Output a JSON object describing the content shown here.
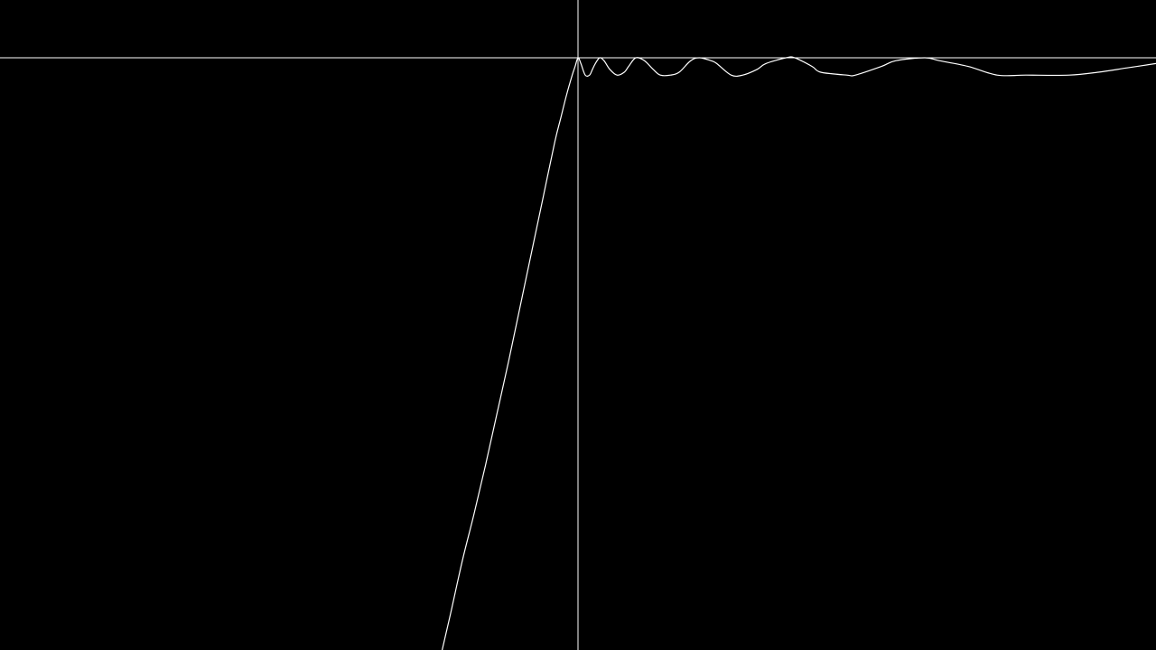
{
  "colors": {
    "background": "#000000",
    "axis": "#ffffff",
    "curve": "#ffffff"
  },
  "chart_data": {
    "type": "line",
    "title": "",
    "xlabel": "",
    "ylabel": "",
    "grid": false,
    "legend": "none",
    "xlim": [
      -20,
      20
    ],
    "ylim": [
      -20.5,
      2
    ],
    "series": [
      {
        "name": "",
        "x": [
          -4.7,
          -4.4,
          -4.0,
          -3.6,
          -3.2,
          -2.8,
          -2.4,
          -2.0,
          -1.6,
          -1.2,
          -0.8,
          -0.6,
          -0.4,
          -0.2,
          -0.1,
          0.0,
          0.1,
          0.25,
          0.4,
          0.5,
          0.6,
          0.75,
          0.9,
          1.1,
          1.35,
          1.6,
          1.75,
          2.0,
          2.3,
          2.6,
          2.85,
          3.2,
          3.5,
          3.9,
          4.2,
          4.6,
          4.8,
          5.3,
          5.7,
          6.2,
          6.5,
          7.2,
          7.5,
          8.1,
          8.4,
          9.3,
          9.6,
          10.5,
          11.0,
          12.0,
          12.5,
          13.5,
          14.5,
          15.5,
          17.0,
          18.0,
          19.0,
          20.0
        ],
        "y": [
          -20.5,
          -19.2,
          -17.4,
          -15.8,
          -14.1,
          -12.3,
          -10.5,
          -8.6,
          -6.7,
          -4.8,
          -2.9,
          -2.1,
          -1.3,
          -0.6,
          -0.3,
          0.0,
          -0.2,
          -0.6,
          -0.6,
          -0.4,
          -0.2,
          0.0,
          -0.1,
          -0.4,
          -0.6,
          -0.5,
          -0.3,
          0.0,
          -0.1,
          -0.4,
          -0.6,
          -0.6,
          -0.5,
          -0.1,
          0.0,
          -0.1,
          -0.2,
          -0.6,
          -0.6,
          -0.4,
          -0.2,
          0.0,
          0.0,
          -0.3,
          -0.5,
          -0.6,
          -0.6,
          -0.3,
          -0.1,
          0.0,
          -0.1,
          -0.3,
          -0.6,
          -0.6,
          -0.6,
          -0.5,
          -0.35,
          -0.2
        ]
      }
    ]
  }
}
